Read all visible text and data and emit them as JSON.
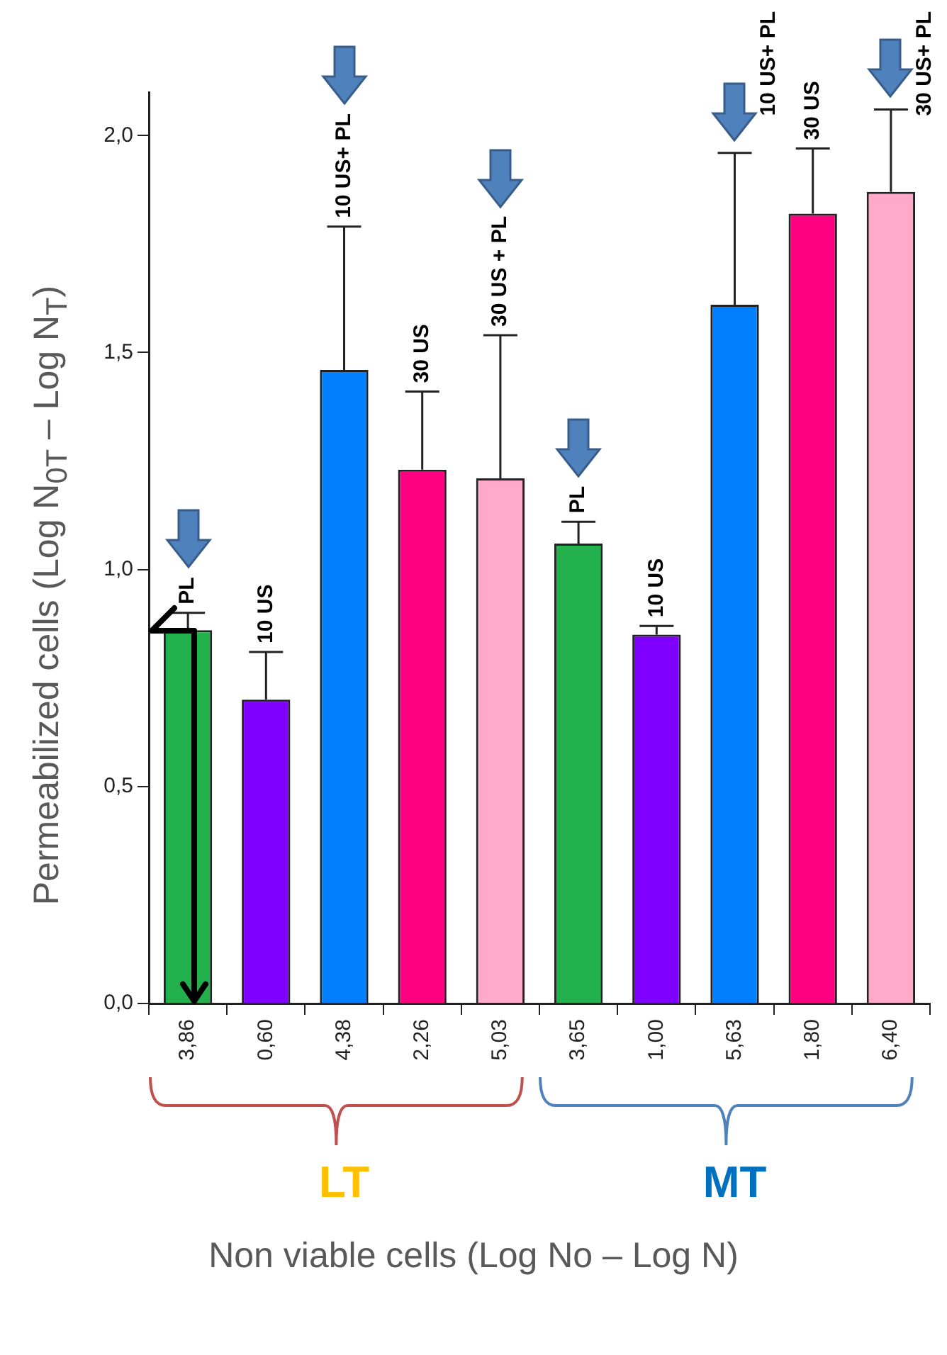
{
  "chart_data": {
    "type": "bar",
    "categories": [
      "3,86",
      "0,60",
      "4,38",
      "2,26",
      "5,03",
      "3,65",
      "1,00",
      "5,63",
      "1,80",
      "6,40"
    ],
    "values": [
      0.86,
      0.7,
      1.46,
      1.23,
      1.21,
      1.06,
      0.85,
      1.61,
      1.82,
      1.87
    ],
    "colors": [
      "#22b14c",
      "#8000ff",
      "#0080ff",
      "#ff0080",
      "#ffaac9",
      "#22b14c",
      "#8000ff",
      "#0080ff",
      "#ff0080",
      "#ffaac9"
    ],
    "errors": [
      [
        0.86,
        0.9
      ],
      [
        0.7,
        0.81
      ],
      [
        1.46,
        1.79
      ],
      [
        1.23,
        1.41
      ],
      [
        1.21,
        1.54
      ],
      [
        1.06,
        1.11
      ],
      [
        0.85,
        0.87
      ],
      [
        1.61,
        1.96
      ],
      [
        1.82,
        1.97
      ],
      [
        1.87,
        2.06
      ]
    ],
    "ylim": [
      0,
      2.1
    ],
    "yticks": [
      {
        "value": 0,
        "label": "0,0"
      },
      {
        "value": 0.5,
        "label": "0,5"
      },
      {
        "value": 1,
        "label": "1,0"
      },
      {
        "value": 1.5,
        "label": "1,5"
      },
      {
        "value": 2,
        "label": "2,0"
      }
    ],
    "xlabel": "Non viable cells (Log No – Log N)",
    "ylabel": "Permeabilized cells (Log N$_{0T}$ – Log N$_{T}$)",
    "annotations": [
      {
        "text": "PL",
        "x": "3,86",
        "y": 0.9
      },
      {
        "text": "10 US",
        "x": "0,60",
        "y": 0.81
      },
      {
        "text": "10 US+ PL",
        "x": "4,38",
        "y": 1.79
      },
      {
        "text": "30 US",
        "x": "2,26",
        "y": 1.41
      },
      {
        "text": "30 US + PL",
        "x": "5,03",
        "y": 1.54
      },
      {
        "text": "PL",
        "x": "3,65",
        "y": 1.11
      },
      {
        "text": "10 US",
        "x": "1,00",
        "y": 0.87
      },
      {
        "text": "10 US+ PL",
        "x": "5,63",
        "y": 1.96
      },
      {
        "text": "30 US",
        "x": "1,80",
        "y": 1.97
      },
      {
        "text": "30 US+ PL",
        "x": "6,40",
        "y": 2.06
      },
      "LT",
      "MT"
    ],
    "grid": false,
    "legend": false
  }
}
